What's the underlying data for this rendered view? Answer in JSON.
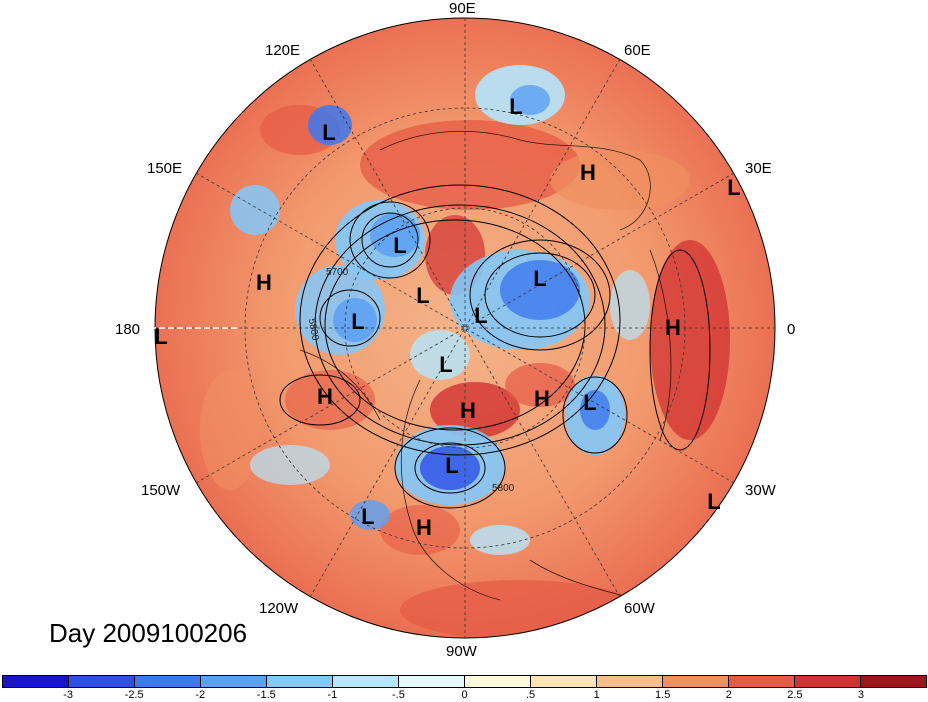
{
  "title": "Day 2009100206",
  "longitude_labels": {
    "lon_90e": "90E",
    "lon_60e": "60E",
    "lon_120e": "120E",
    "lon_150e": "150E",
    "lon_30e": "30E",
    "lon_180": "180",
    "lon_0": "0",
    "lon_150w": "150W",
    "lon_30w": "30W",
    "lon_120w": "120W",
    "lon_60w": "60W",
    "lon_90w": "90W"
  },
  "pressure_markers": [
    {
      "type": "L"
    },
    {
      "type": "L"
    },
    {
      "type": "H"
    },
    {
      "type": "L"
    },
    {
      "type": "L"
    },
    {
      "type": "H"
    },
    {
      "type": "L"
    },
    {
      "type": "L"
    },
    {
      "type": "L"
    },
    {
      "type": "L"
    },
    {
      "type": "H"
    },
    {
      "type": "L"
    },
    {
      "type": "H"
    },
    {
      "type": "H"
    },
    {
      "type": "H"
    },
    {
      "type": "L"
    },
    {
      "type": "L"
    },
    {
      "type": "L"
    },
    {
      "type": "L"
    },
    {
      "type": "H"
    },
    {
      "type": "L"
    }
  ],
  "contour_labels": [
    "5700",
    "5800",
    "5800"
  ],
  "colorbar": {
    "tick_labels": [
      "-3",
      "-2.5",
      "-2",
      "-1.5",
      "-1",
      "-.5",
      "0",
      ".5",
      "1",
      "1.5",
      "2",
      "2.5",
      "3"
    ],
    "colors": [
      "#1a14c8",
      "#2d50e6",
      "#3c78ee",
      "#5aa0f5",
      "#82c8fa",
      "#b4e6fc",
      "#e6f8fc",
      "#fcf8dc",
      "#fae6b4",
      "#f7be8c",
      "#f09060",
      "#e65a46",
      "#d23232",
      "#a0141e"
    ]
  }
}
